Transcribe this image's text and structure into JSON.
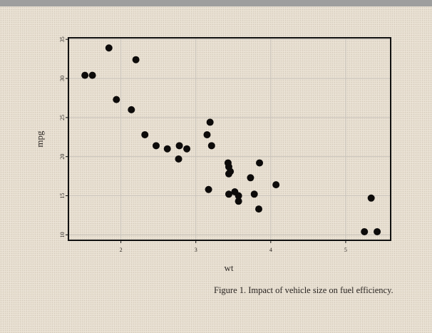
{
  "chart_data": {
    "type": "scatter",
    "title": "",
    "xlabel": "wt",
    "ylabel": "mpg",
    "xlim": [
      1.3,
      5.6
    ],
    "ylim": [
      9.3,
      35.2
    ],
    "xticks": [
      2,
      3,
      4,
      5
    ],
    "yticks": [
      10,
      15,
      20,
      25,
      30,
      35
    ],
    "grid": true,
    "legend": "none",
    "points": [
      {
        "x": 1.52,
        "y": 30.4
      },
      {
        "x": 1.62,
        "y": 30.4
      },
      {
        "x": 1.84,
        "y": 33.9
      },
      {
        "x": 1.94,
        "y": 27.3
      },
      {
        "x": 2.14,
        "y": 26.0
      },
      {
        "x": 2.2,
        "y": 32.4
      },
      {
        "x": 2.32,
        "y": 22.8
      },
      {
        "x": 2.47,
        "y": 21.4
      },
      {
        "x": 2.62,
        "y": 21.0
      },
      {
        "x": 2.77,
        "y": 19.7
      },
      {
        "x": 2.78,
        "y": 21.4
      },
      {
        "x": 2.88,
        "y": 21.0
      },
      {
        "x": 3.15,
        "y": 22.8
      },
      {
        "x": 3.17,
        "y": 15.8
      },
      {
        "x": 3.19,
        "y": 24.4
      },
      {
        "x": 3.21,
        "y": 21.4
      },
      {
        "x": 3.43,
        "y": 19.2
      },
      {
        "x": 3.44,
        "y": 18.7
      },
      {
        "x": 3.44,
        "y": 17.8
      },
      {
        "x": 3.46,
        "y": 18.1
      },
      {
        "x": 3.44,
        "y": 15.2
      },
      {
        "x": 3.52,
        "y": 15.5
      },
      {
        "x": 3.57,
        "y": 14.3
      },
      {
        "x": 3.57,
        "y": 15.0
      },
      {
        "x": 3.73,
        "y": 17.3
      },
      {
        "x": 3.78,
        "y": 15.2
      },
      {
        "x": 3.84,
        "y": 13.3
      },
      {
        "x": 3.85,
        "y": 19.2
      },
      {
        "x": 4.07,
        "y": 16.4
      },
      {
        "x": 5.25,
        "y": 10.4
      },
      {
        "x": 5.34,
        "y": 14.7
      },
      {
        "x": 5.42,
        "y": 10.4
      }
    ]
  },
  "caption": "Figure 1. Impact of vehicle size on fuel efficiency."
}
